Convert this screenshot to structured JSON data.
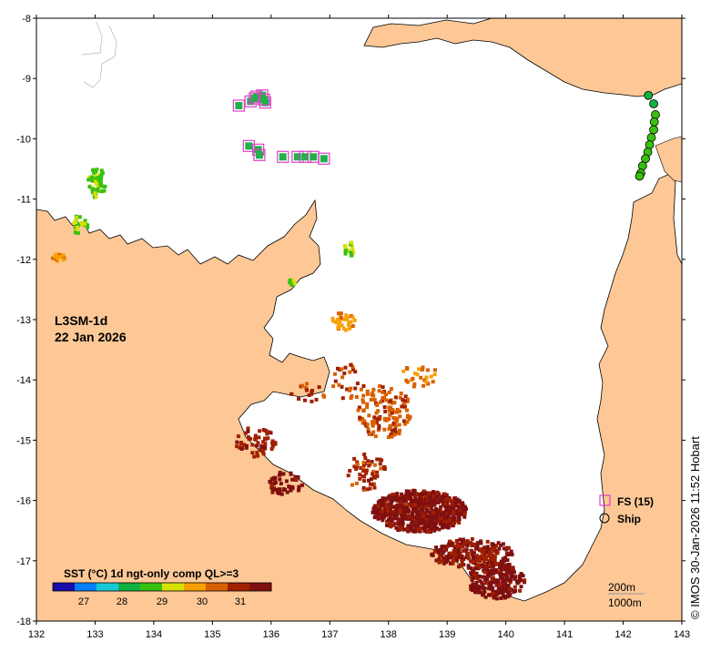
{
  "map": {
    "title_line1": "L3SM-1d",
    "title_line2": "22 Jan 2026",
    "credit": "© IMOS 30-Jan-2026 11:52 Hobart",
    "x_ticks": [
      "132",
      "133",
      "134",
      "135",
      "136",
      "137",
      "138",
      "139",
      "140",
      "141",
      "142",
      "143"
    ],
    "y_ticks": [
      "-8",
      "-9",
      "-10",
      "-11",
      "-12",
      "-13",
      "-14",
      "-15",
      "-16",
      "-17",
      "-18"
    ],
    "lon_range": [
      132,
      143
    ],
    "lat_range": [
      -18,
      -8
    ]
  },
  "legend": {
    "fs_label": "FS (15)",
    "ship_label": "Ship",
    "fs_color": "#e040c8",
    "ship_color": "#000000"
  },
  "colorbar": {
    "title": "SST (°C) 1d ngt-only comp QL>=3",
    "ticks": [
      "27",
      "28",
      "29",
      "30",
      "31"
    ],
    "colors": [
      "#1a0aa8",
      "#0080ff",
      "#18c8d8",
      "#10b040",
      "#38c010",
      "#d8e000",
      "#f8a000",
      "#d86000",
      "#a02000",
      "#801010"
    ]
  },
  "scale": {
    "depth_200": "200m",
    "depth_1000": "1000m"
  },
  "colors": {
    "land": "#fdc896",
    "sea": "#ffffff",
    "fs_fill": "#21b04a"
  },
  "fs_stations": [
    {
      "lon": 135.45,
      "lat": -9.45
    },
    {
      "lon": 135.65,
      "lat": -9.38
    },
    {
      "lon": 135.75,
      "lat": -9.3
    },
    {
      "lon": 135.85,
      "lat": -9.28
    },
    {
      "lon": 135.9,
      "lat": -9.4
    },
    {
      "lon": 135.62,
      "lat": -10.12
    },
    {
      "lon": 135.78,
      "lat": -10.18
    },
    {
      "lon": 135.8,
      "lat": -10.27
    },
    {
      "lon": 136.2,
      "lat": -10.3
    },
    {
      "lon": 136.45,
      "lat": -10.3
    },
    {
      "lon": 136.58,
      "lat": -10.3
    },
    {
      "lon": 136.72,
      "lat": -10.3
    },
    {
      "lon": 136.9,
      "lat": -10.33
    },
    {
      "lon": 135.72,
      "lat": -9.33
    },
    {
      "lon": 135.88,
      "lat": -9.35
    }
  ],
  "ship_track": [
    {
      "lon": 142.43,
      "lat": -9.28,
      "sst": 28.4
    },
    {
      "lon": 142.52,
      "lat": -9.42,
      "sst": 28.6
    },
    {
      "lon": 142.55,
      "lat": -9.6,
      "sst": 29.0
    },
    {
      "lon": 142.53,
      "lat": -9.72,
      "sst": 28.9
    },
    {
      "lon": 142.52,
      "lat": -9.85,
      "sst": 28.9
    },
    {
      "lon": 142.48,
      "lat": -9.98,
      "sst": 28.9
    },
    {
      "lon": 142.45,
      "lat": -10.1,
      "sst": 28.9
    },
    {
      "lon": 142.42,
      "lat": -10.22,
      "sst": 28.9
    },
    {
      "lon": 142.38,
      "lat": -10.33,
      "sst": 28.9
    },
    {
      "lon": 142.33,
      "lat": -10.45,
      "sst": 28.9
    },
    {
      "lon": 142.3,
      "lat": -10.57,
      "sst": 28.9
    },
    {
      "lon": 142.28,
      "lat": -10.62,
      "sst": 28.9
    }
  ]
}
